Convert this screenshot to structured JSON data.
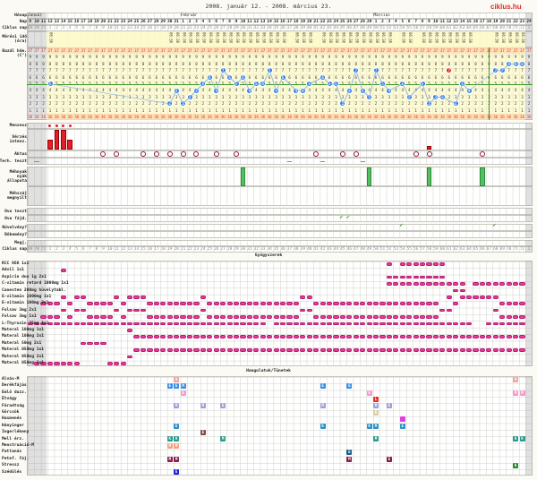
{
  "title": "2008. január 12. - 2008. március 23.",
  "logo": "ciklus.hu",
  "labels": {
    "month": "Hónap",
    "day": "Nap",
    "cycle": "Ciklus nap",
    "time": "Mérési idő (óra)",
    "temp": "Bazál hőm. (C°)",
    "menses": "Menzesz",
    "bleeding": "Vérzés intenz.",
    "intercourse": "Aktus",
    "preg_test": "Terh. teszt",
    "mucus": "Méhnyak nyák állapota",
    "cervix": "Méhszáj megnyílt",
    "ovu_test": "Ovu teszt",
    "ovu_pain": "Ovu fájd.",
    "extra1": "Növelvény?",
    "extra2": "Bőkemény?",
    "notes": "Megj.",
    "cycle2": "Ciklus nap"
  },
  "months": [
    {
      "label": "Január",
      "col": 0
    },
    {
      "label": "Február",
      "col": 23
    },
    {
      "label": "Március",
      "col": 52
    }
  ],
  "days": [
    "9",
    "10",
    "11",
    "12",
    "13",
    "14",
    "15",
    "16",
    "17",
    "18",
    "19",
    "20",
    "21",
    "22",
    "23",
    "24",
    "25",
    "26",
    "27",
    "28",
    "29",
    "30",
    "31",
    "1",
    "2",
    "3",
    "4",
    "5",
    "6",
    "7",
    "8",
    "9",
    "10",
    "11",
    "12",
    "13",
    "14",
    "15",
    "16",
    "17",
    "18",
    "19",
    "20",
    "21",
    "22",
    "23",
    "24",
    "25",
    "26",
    "27",
    "28",
    "29",
    "1",
    "2",
    "3",
    "4",
    "5",
    "6",
    "7",
    "8",
    "9",
    "10",
    "11",
    "12",
    "13",
    "14",
    "15",
    "16",
    "17",
    "18",
    "19",
    "20",
    "21",
    "22",
    "23",
    "24"
  ],
  "cycle_days": [
    "69",
    "70",
    "71",
    "1",
    "2",
    "3",
    "4",
    "5",
    "6",
    "7",
    "8",
    "9",
    "10",
    "11",
    "12",
    "13",
    "14",
    "15",
    "16",
    "17",
    "18",
    "19",
    "20",
    "21",
    "22",
    "23",
    "24",
    "25",
    "26",
    "27",
    "28",
    "29",
    "30",
    "31",
    "32",
    "33",
    "34",
    "35",
    "36",
    "37",
    "38",
    "39",
    "40",
    "41",
    "42",
    "43",
    "44",
    "45",
    "46",
    "47",
    "48",
    "49",
    "50",
    "51",
    "52",
    "53",
    "54",
    "55",
    "56",
    "57",
    "58",
    "59",
    "60",
    "61",
    "62",
    "63",
    "64",
    "65",
    "66",
    "67",
    "68",
    "69",
    "70",
    "71",
    "72",
    "1"
  ],
  "measure_time": "06:30",
  "time_cols": [
    3,
    21,
    22,
    23,
    24,
    25,
    26,
    27,
    28,
    29,
    30,
    31,
    32,
    33,
    34,
    35,
    36,
    37,
    38,
    40,
    41,
    42,
    44,
    45,
    46,
    47,
    48,
    49,
    50,
    51,
    52,
    53,
    54,
    56,
    57,
    59,
    60,
    61,
    62,
    63,
    64,
    65,
    66,
    70,
    71,
    72,
    73,
    74
  ],
  "temp_scale": [
    "37",
    "9",
    "8",
    "7",
    "6",
    "5",
    "4",
    "3",
    "2",
    "1",
    "36"
  ],
  "coverline": 36.5,
  "temperatures": [
    null,
    null,
    null,
    36.5,
    null,
    null,
    null,
    null,
    null,
    null,
    null,
    null,
    null,
    null,
    null,
    null,
    null,
    null,
    null,
    null,
    null,
    36.2,
    36.4,
    36.2,
    36.3,
    36.4,
    36.5,
    36.6,
    36.4,
    36.7,
    36.6,
    36.5,
    36.6,
    36.4,
    36.5,
    36.5,
    36.7,
    36.4,
    36.6,
    null,
    36.4,
    36.4,
    36.5,
    null,
    36.6,
    36.5,
    36.5,
    36.2,
    36.4,
    36.7,
    36.4,
    36.3,
    36.7,
    36.5,
    36.4,
    null,
    36.5,
    36.3,
    null,
    36.5,
    36.2,
    36.3,
    36.3,
    36.7,
    36.2,
    36.5,
    36.4,
    null,
    null,
    null,
    36.7,
    36.7,
    36.8,
    36.8,
    36.8,
    null
  ],
  "excluded_temp_cols": [
    63
  ],
  "menses_cols": [
    3,
    4,
    5,
    6
  ],
  "bleeding": [
    {
      "col": 3,
      "level": 0.5
    },
    {
      "col": 4,
      "level": 1
    },
    {
      "col": 5,
      "level": 1
    },
    {
      "col": 6,
      "level": 0.5
    },
    {
      "col": 60,
      "level": 0.2
    }
  ],
  "intercourse_cols": [
    11,
    13,
    17,
    19,
    21,
    23,
    25,
    28,
    31,
    43,
    47,
    49,
    58,
    60,
    68
  ],
  "preg_test_cols": [
    1,
    39,
    44,
    50
  ],
  "mucus_cols": [
    32,
    51,
    60,
    68
  ],
  "ovu_pain_cols": [
    47,
    48
  ],
  "extra1_cols": [
    56,
    70
  ],
  "colors": {
    "temp_dot": "#2a7ae2",
    "excluded_dot": "#e02020",
    "coverline": "#3a9a2a",
    "pill": "#e8409a",
    "bleeding": "#e0202a"
  },
  "medications": {
    "header": "Gyógyszerek",
    "rows": [
      {
        "name": "RCC 666 1x1",
        "ranges": [
          [
            54,
            54
          ],
          [
            56,
            62
          ]
        ]
      },
      {
        "name": "Advil 1x1",
        "ranges": [
          [
            5,
            5
          ]
        ]
      },
      {
        "name": "Aspirin duo 1g 2x1",
        "ranges": [
          [
            54,
            62
          ]
        ]
      },
      {
        "name": "C-vitamin retard 1000mg 1x1",
        "ranges": [
          [
            54,
            65
          ],
          [
            67,
            74
          ]
        ]
      },
      {
        "name": "Canesten 200mg hüvelytabl.",
        "ranges": [
          [
            64,
            65
          ]
        ]
      },
      {
        "name": "E-vitamin 1000mg 1x1",
        "ranges": [
          [
            5,
            5
          ],
          [
            7,
            8
          ],
          [
            13,
            13
          ],
          [
            15,
            17
          ],
          [
            26,
            26
          ],
          [
            41,
            42
          ],
          [
            63,
            63
          ],
          [
            65,
            70
          ]
        ]
      },
      {
        "name": "E-vitamin 100mg 2x1",
        "ranges": [
          [
            2,
            4
          ],
          [
            6,
            6
          ],
          [
            9,
            12
          ],
          [
            14,
            14
          ],
          [
            18,
            25
          ],
          [
            27,
            40
          ],
          [
            43,
            61
          ],
          [
            64,
            64
          ],
          [
            71,
            74
          ]
        ]
      },
      {
        "name": "Folsav 3mg 2x1",
        "ranges": [
          [
            5,
            5
          ],
          [
            7,
            8
          ],
          [
            13,
            13
          ],
          [
            15,
            17
          ],
          [
            26,
            26
          ],
          [
            41,
            42
          ],
          [
            62,
            63
          ],
          [
            70,
            70
          ]
        ]
      },
      {
        "name": "Folsav 3mg 1x1",
        "ranges": [
          [
            2,
            4
          ],
          [
            6,
            6
          ],
          [
            9,
            12
          ],
          [
            14,
            14
          ],
          [
            18,
            25
          ],
          [
            27,
            40
          ],
          [
            43,
            61
          ],
          [
            71,
            74
          ]
        ]
      },
      {
        "name": "L-Thyroxin 75mg 1x1",
        "ranges": [
          [
            0,
            35
          ],
          [
            37,
            66
          ],
          [
            69,
            74
          ]
        ]
      },
      {
        "name": "Materal 100mg 1x1",
        "ranges": [
          [
            15,
            15
          ]
        ]
      },
      {
        "name": "Materal 100mg 2x1",
        "ranges": [
          [
            16,
            74
          ]
        ]
      },
      {
        "name": "Materal 50mg 2x1",
        "ranges": [
          [
            8,
            11
          ]
        ]
      },
      {
        "name": "Materal 050mg 1x1",
        "ranges": [
          [
            16,
            74
          ]
        ]
      },
      {
        "name": "Materal 050mg 2x1",
        "ranges": [
          [
            15,
            15
          ]
        ]
      },
      {
        "name": "Materal 050mg 3x1",
        "ranges": [
          [
            1,
            7
          ],
          [
            12,
            14
          ]
        ]
      }
    ]
  },
  "symptoms": {
    "header": "Hangulatok/Tünetek",
    "rows": [
      {
        "name": "Alvás-M",
        "color": "#f4a0a0",
        "marks": [
          {
            "col": 22,
            "letter": "H"
          },
          {
            "col": 73,
            "letter": "H"
          }
        ]
      },
      {
        "name": "Derékfájás",
        "color": "#3a8ee6",
        "marks": [
          {
            "col": 21,
            "letter": "E"
          },
          {
            "col": 22,
            "letter": "E"
          },
          {
            "col": 23,
            "letter": "M"
          },
          {
            "col": 44,
            "letter": "E"
          },
          {
            "col": 48,
            "letter": "E"
          }
        ]
      },
      {
        "name": "Emlő duzz.",
        "color": "#f59ac8",
        "marks": [
          {
            "col": 23,
            "letter": "E"
          },
          {
            "col": 51,
            "letter": "E"
          },
          {
            "col": 73,
            "letter": "M"
          },
          {
            "col": 74,
            "letter": "M"
          }
        ]
      },
      {
        "name": "Étvágy",
        "color": "#e53030",
        "marks": [
          {
            "col": 52,
            "letter": "L"
          }
        ]
      },
      {
        "name": "Fáradtság",
        "color": "#a0a0d8",
        "marks": [
          {
            "col": 22,
            "letter": "M"
          },
          {
            "col": 26,
            "letter": "M"
          },
          {
            "col": 29,
            "letter": "E"
          },
          {
            "col": 44,
            "letter": "M"
          },
          {
            "col": 52,
            "letter": "M"
          },
          {
            "col": 54,
            "letter": "E"
          }
        ]
      },
      {
        "name": "Görcsök",
        "color": "#d8cfa0",
        "marks": [
          {
            "col": 52,
            "letter": "K"
          }
        ]
      },
      {
        "name": "Hasmenés",
        "color": "#e040e0",
        "marks": [
          {
            "col": 56,
            "letter": ""
          }
        ]
      },
      {
        "name": "Hányinger",
        "color": "#2a90c8",
        "marks": [
          {
            "col": 22,
            "letter": "E"
          },
          {
            "col": 44,
            "letter": "K"
          },
          {
            "col": 51,
            "letter": "K"
          },
          {
            "col": 52,
            "letter": "M"
          },
          {
            "col": 56,
            "letter": "E"
          }
        ]
      },
      {
        "name": "Ingerlékeny",
        "color": "#8a4a4a",
        "marks": [
          {
            "col": 26,
            "letter": "E"
          }
        ]
      },
      {
        "name": "Mell érz.",
        "color": "#2a9a8a",
        "marks": [
          {
            "col": 21,
            "letter": "K"
          },
          {
            "col": 22,
            "letter": "K"
          },
          {
            "col": 29,
            "letter": "M"
          },
          {
            "col": 52,
            "letter": "M"
          },
          {
            "col": 73,
            "letter": "K"
          },
          {
            "col": 74,
            "letter": "K"
          }
        ]
      },
      {
        "name": "Menstruáció-M",
        "color": "#f0a080",
        "marks": [
          {
            "col": 21,
            "letter": "M"
          },
          {
            "col": 22,
            "letter": "M"
          }
        ]
      },
      {
        "name": "Pattanás",
        "color": "#1a5a8a",
        "marks": [
          {
            "col": 48,
            "letter": "E"
          }
        ]
      },
      {
        "name": "Petef. fáj.",
        "color": "#8a1a4a",
        "marks": [
          {
            "col": 21,
            "letter": "M"
          },
          {
            "col": 22,
            "letter": "M"
          },
          {
            "col": 48,
            "letter": "M"
          },
          {
            "col": 54,
            "letter": "E"
          }
        ]
      },
      {
        "name": "Stressz",
        "color": "#2a8a2a",
        "marks": [
          {
            "col": 73,
            "letter": "K"
          }
        ]
      },
      {
        "name": "Szédülés",
        "color": "#2020d0",
        "marks": [
          {
            "col": 22,
            "letter": "E"
          }
        ]
      }
    ]
  }
}
